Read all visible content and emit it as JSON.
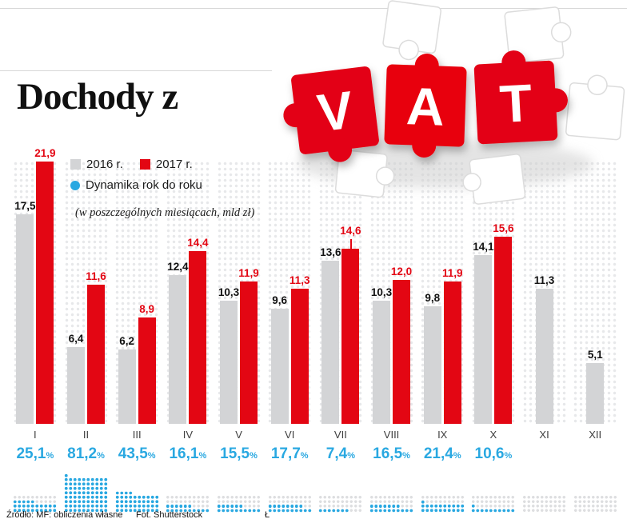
{
  "title": "Dochody z",
  "puzzle": {
    "letters": [
      "V",
      "A",
      "T"
    ]
  },
  "legend": {
    "y2016": "2016 r.",
    "y2017": "2017 r.",
    "dynamics": "Dynamika rok do roku"
  },
  "note": "(w poszczególnych miesiącach, mld zł)",
  "footer": {
    "source": "Źródło: MF: obliczenia własne",
    "photo": "Fot. Shutterstock",
    "mark": "Ł"
  },
  "colors": {
    "red": "#e30613",
    "gray_bar": "#d3d4d6",
    "blue": "#29a8e1",
    "faint_dots": "#e7e8ea"
  },
  "chart_data": {
    "type": "bar",
    "title": "Dochody z VAT",
    "subtitle": "(w poszczególnych miesiącach, mld zł)",
    "unit": "mld zł",
    "categories": [
      "I",
      "II",
      "III",
      "IV",
      "V",
      "VI",
      "VII",
      "VIII",
      "IX",
      "X",
      "XI",
      "XII"
    ],
    "series": [
      {
        "name": "2016 r.",
        "color": "#d3d4d6",
        "values": [
          17.5,
          6.4,
          6.2,
          12.4,
          10.3,
          9.6,
          13.6,
          10.3,
          9.8,
          14.1,
          11.3,
          5.1
        ]
      },
      {
        "name": "2017 r.",
        "color": "#e30613",
        "values": [
          21.9,
          11.6,
          8.9,
          14.4,
          11.9,
          11.3,
          14.6,
          12.0,
          11.9,
          15.6,
          null,
          null
        ]
      }
    ],
    "dynamics_pct": [
      25.1,
      81.2,
      43.5,
      16.1,
      15.5,
      17.7,
      7.4,
      16.5,
      21.4,
      10.6,
      null,
      null
    ],
    "dynamics_name": "Dynamika rok do roku",
    "callout_month": "VII",
    "ylim": [
      0,
      22
    ],
    "grid": false,
    "legend_position": "top-left"
  }
}
